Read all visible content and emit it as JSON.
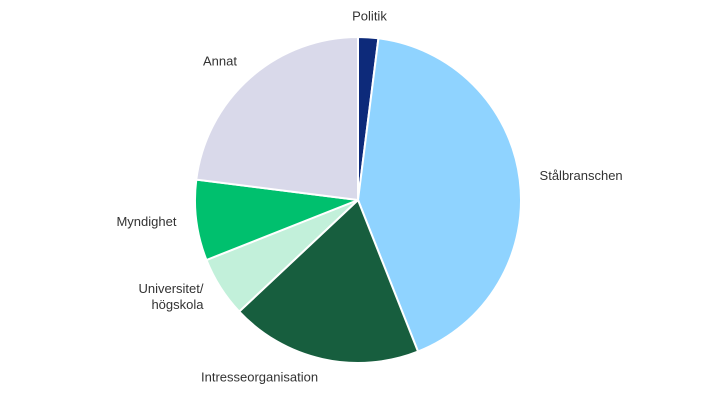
{
  "chart_data": {
    "type": "pie",
    "categories": [
      "Politik",
      "Stålbranschen",
      "Intresseorganisation",
      "Universitet/\nhögskola",
      "Myndighet",
      "Annat"
    ],
    "values": [
      2,
      42,
      19,
      6,
      8,
      23
    ],
    "colors": [
      "#0d2a7a",
      "#8fd3ff",
      "#175e3e",
      "#c2f0da",
      "#00c06e",
      "#d9d9ea"
    ]
  }
}
